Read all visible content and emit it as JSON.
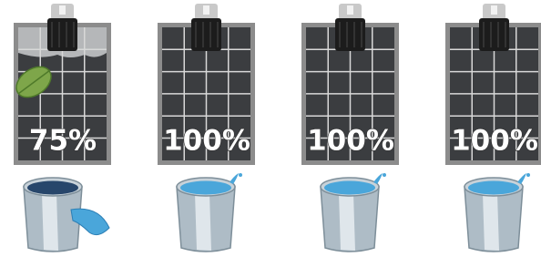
{
  "panels": [
    {
      "label": "75%"
    },
    {
      "label": "100%"
    },
    {
      "label": "100%"
    },
    {
      "label": "100%"
    }
  ]
}
